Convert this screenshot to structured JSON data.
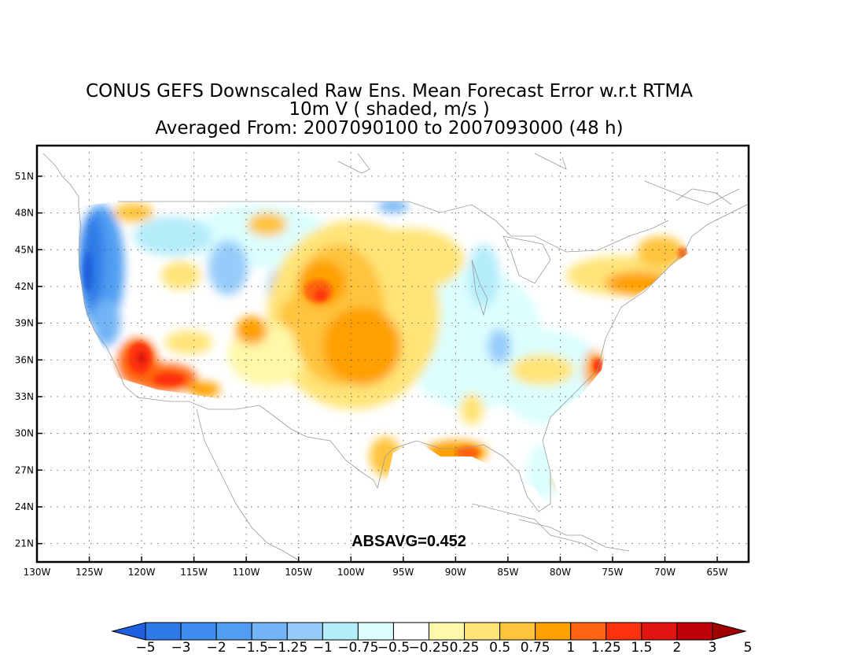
{
  "title": {
    "line1": "CONUS GEFS Downscaled Raw Ens. Mean Forecast Error w.r.t RTMA",
    "line2": "10m V ( shaded, m/s )",
    "line3": "Averaged From: 2007090100 to 2007093000 (48 h)"
  },
  "map": {
    "lon_range": [
      -130,
      -62
    ],
    "lat_range": [
      19.5,
      53.5
    ],
    "lat_ticks": [
      "51N",
      "48N",
      "45N",
      "42N",
      "39N",
      "36N",
      "33N",
      "30N",
      "27N",
      "24N",
      "21N"
    ],
    "lat_values": [
      51,
      48,
      45,
      42,
      39,
      36,
      33,
      30,
      27,
      24,
      21
    ],
    "lon_ticks": [
      "130W",
      "125W",
      "120W",
      "115W",
      "110W",
      "105W",
      "100W",
      "95W",
      "90W",
      "85W",
      "80W",
      "75W",
      "70W",
      "65W"
    ],
    "lon_values": [
      -130,
      -125,
      -120,
      -115,
      -110,
      -105,
      -100,
      -95,
      -90,
      -85,
      -80,
      -75,
      -70,
      -65
    ],
    "grid": true,
    "stat_label": "ABSAVG=0.452"
  },
  "colorbar": {
    "labels": [
      "-5",
      "-3",
      "-2",
      "-1.5",
      "-1.25",
      "-1",
      "-0.75",
      "-0.5",
      "-0.25",
      "0.25",
      "0.5",
      "0.75",
      "1",
      "1.25",
      "1.5",
      "2",
      "3",
      "5"
    ],
    "colors": [
      "#1e60e0",
      "#2d7ae8",
      "#3d8cf0",
      "#4f9ef2",
      "#72b4f6",
      "#96cbfa",
      "#b4ecfa",
      "#dcfefe",
      "#ffffff",
      "#fff8a8",
      "#ffe478",
      "#ffc43c",
      "#ffa000",
      "#ff6410",
      "#ff3210",
      "#e01410",
      "#c00008",
      "#a00000"
    ]
  },
  "field": {
    "regions": [
      {
        "name": "pacific-nw-coast",
        "value": -3
      },
      {
        "name": "northern-california-coast",
        "value": -2
      },
      {
        "name": "southern-california",
        "value": 2
      },
      {
        "name": "southwest-arizona",
        "value": 1.5
      },
      {
        "name": "nebraska-high-plains",
        "value": 1.5
      },
      {
        "name": "central-plains",
        "value": 1
      },
      {
        "name": "texas-panhandle",
        "value": 1
      },
      {
        "name": "northern-plains",
        "value": 0.75
      },
      {
        "name": "gulf-coast-louisiana",
        "value": 1.5
      },
      {
        "name": "south-texas",
        "value": 0.75
      },
      {
        "name": "new-england",
        "value": 1
      },
      {
        "name": "maine",
        "value": 1.25
      },
      {
        "name": "carolina-coast",
        "value": 1.5
      },
      {
        "name": "northern-rockies",
        "value": -0.75
      },
      {
        "name": "great-basin",
        "value": -0.5
      },
      {
        "name": "great-lakes",
        "value": -0.5
      },
      {
        "name": "tennessee-valley",
        "value": -0.5
      },
      {
        "name": "florida",
        "value": -0.25
      }
    ]
  }
}
